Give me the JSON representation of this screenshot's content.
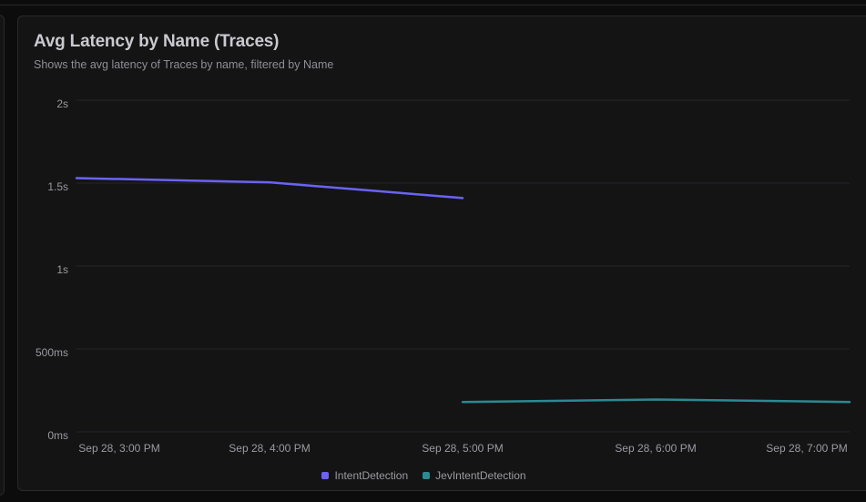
{
  "panel": {
    "title": "Avg Latency by Name (Traces)",
    "subtitle": "Shows the avg latency of Traces by name, filtered by Name"
  },
  "chart_data": {
    "type": "line",
    "title": "Avg Latency by Name (Traces)",
    "subtitle": "Shows the avg latency of Traces by name, filtered by Name",
    "xlabel": "",
    "ylabel": "",
    "x_ticks": [
      "Sep 28, 3:00 PM",
      "Sep 28, 4:00 PM",
      "Sep 28, 5:00 PM",
      "Sep 28, 6:00 PM",
      "Sep 28, 7:00 PM"
    ],
    "y_ticks": [
      "0ms",
      "500ms",
      "1s",
      "1.5s",
      "2s"
    ],
    "y_tick_values": [
      0,
      500,
      1000,
      1500,
      2000
    ],
    "ylim": [
      0,
      2000
    ],
    "y_unit": "ms",
    "grid": true,
    "legend_position": "bottom-center",
    "series": [
      {
        "name": "IntentDetection",
        "color": "#6b63f6",
        "x": [
          "Sep 28, 3:00 PM",
          "Sep 28, 4:00 PM",
          "Sep 28, 5:00 PM"
        ],
        "y": [
          1530,
          1505,
          1410
        ]
      },
      {
        "name": "JevIntentDetection",
        "color": "#2a8a92",
        "x": [
          "Sep 28, 5:00 PM",
          "Sep 28, 6:00 PM",
          "Sep 28, 7:00 PM"
        ],
        "y": [
          180,
          195,
          180
        ]
      }
    ]
  }
}
